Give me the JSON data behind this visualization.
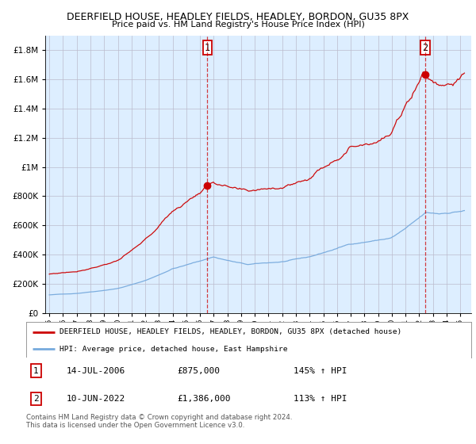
{
  "title": "DEERFIELD HOUSE, HEADLEY FIELDS, HEADLEY, BORDON, GU35 8PX",
  "subtitle": "Price paid vs. HM Land Registry's House Price Index (HPI)",
  "legend_line1": "DEERFIELD HOUSE, HEADLEY FIELDS, HEADLEY, BORDON, GU35 8PX (detached house)",
  "legend_line2": "HPI: Average price, detached house, East Hampshire",
  "footnote": "Contains HM Land Registry data © Crown copyright and database right 2024.\nThis data is licensed under the Open Government Licence v3.0.",
  "transaction1_date": "14-JUL-2006",
  "transaction1_price": "£875,000",
  "transaction1_hpi": "145% ↑ HPI",
  "transaction1_year": 2006.54,
  "transaction1_value": 875000,
  "transaction2_date": "10-JUN-2022",
  "transaction2_price": "£1,386,000",
  "transaction2_hpi": "113% ↑ HPI",
  "transaction2_year": 2022.44,
  "transaction2_value": 1386000,
  "red_color": "#cc0000",
  "blue_color": "#77aadd",
  "bg_color": "#ddeeff",
  "grid_color": "#bbbbcc",
  "ylim_max": 1900000,
  "xlim_start": 1994.7,
  "xlim_end": 2025.8
}
